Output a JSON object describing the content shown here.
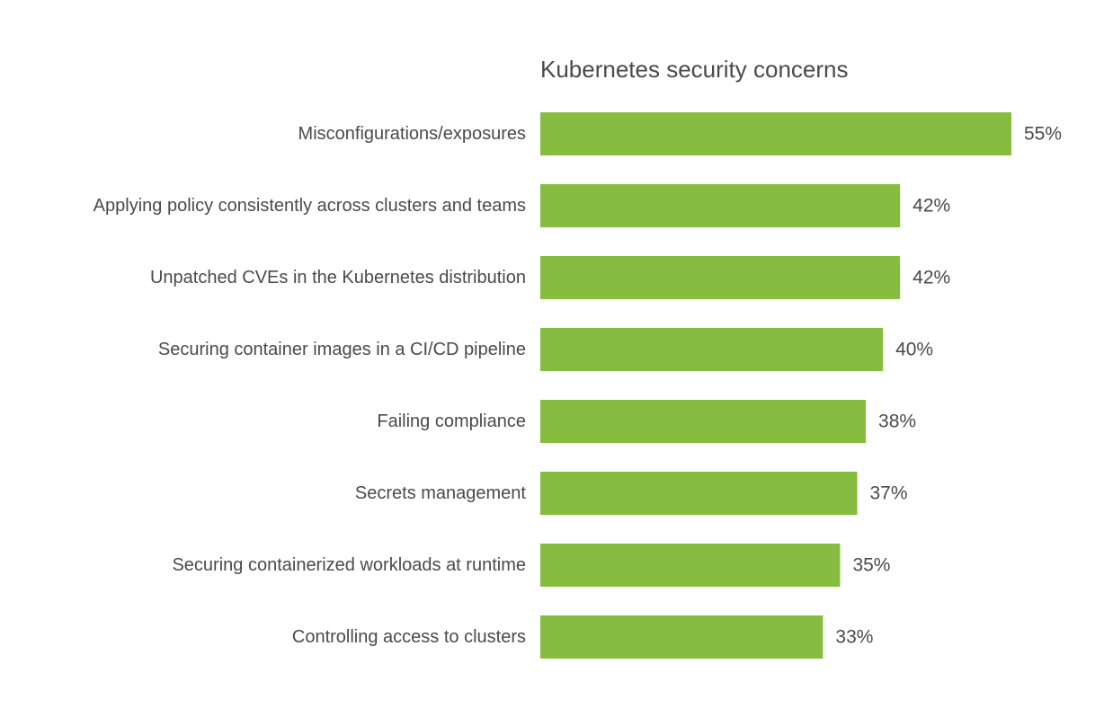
{
  "chart_data": {
    "type": "bar",
    "orientation": "horizontal",
    "title": "Kubernetes security concerns",
    "categories": [
      "Misconfigurations/exposures",
      "Applying policy consistently across clusters and teams",
      "Unpatched CVEs in the Kubernetes distribution",
      "Securing container images in a CI/CD pipeline",
      "Failing compliance",
      "Secrets management",
      "Securing containerized workloads at runtime",
      "Controlling access to clusters"
    ],
    "values": [
      55,
      42,
      42,
      40,
      38,
      37,
      35,
      33
    ],
    "value_labels": [
      "55%",
      "42%",
      "42%",
      "40%",
      "38%",
      "37%",
      "35%",
      "33%"
    ],
    "unit": "%",
    "xlim": [
      0,
      55
    ],
    "grid": false,
    "legend": "none",
    "bar_color": "#86bc40",
    "text_color": "#4a4a4a"
  }
}
